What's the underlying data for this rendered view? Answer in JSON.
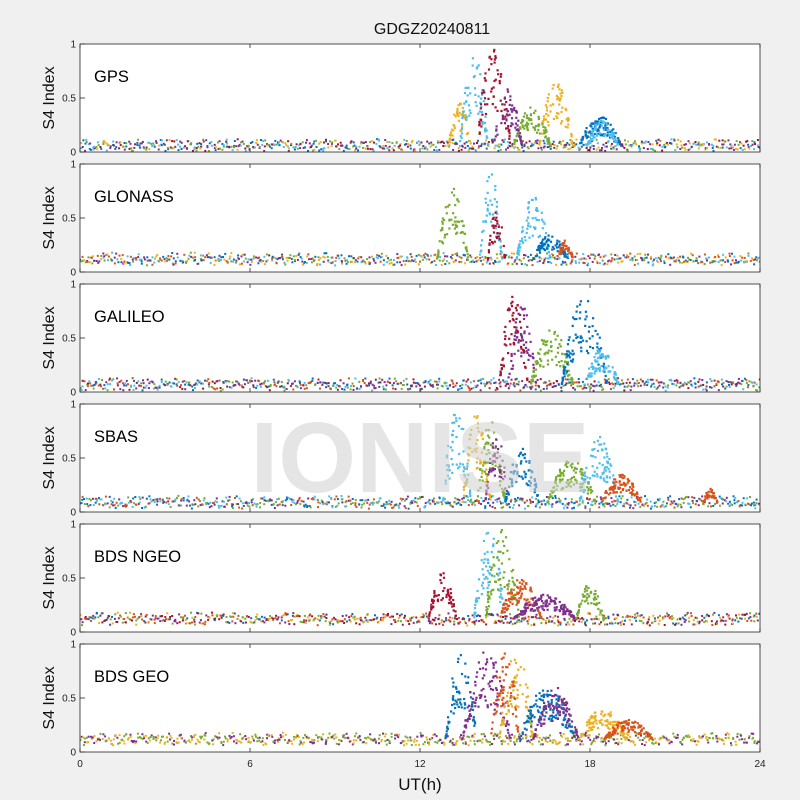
{
  "chart_data": {
    "type": "scatter",
    "title": "GDGZ20240811",
    "xlabel": "UT(h)",
    "ylabel": "S4 Index",
    "xlim": [
      0,
      24
    ],
    "ylim": [
      0,
      1
    ],
    "x_ticks": [
      "0",
      "6",
      "12",
      "18",
      "24"
    ],
    "y_ticks": [
      "0",
      "0.5",
      "1"
    ],
    "watermark": "IONISE",
    "colors": [
      "#0072BD",
      "#D95319",
      "#EDB120",
      "#7E2F8E",
      "#77AC30",
      "#4DBEEE",
      "#A2142F"
    ],
    "panels": [
      {
        "name": "GPS",
        "baseline_colors": [
          6,
          0,
          4,
          2,
          3,
          5
        ],
        "baseline_level": 0.06,
        "events": [
          {
            "start": 13.0,
            "end": 13.8,
            "peak": 0.45,
            "color": 2
          },
          {
            "start": 13.4,
            "end": 14.4,
            "peak": 0.9,
            "color": 5
          },
          {
            "start": 14.0,
            "end": 15.2,
            "peak": 0.95,
            "color": 6
          },
          {
            "start": 14.6,
            "end": 15.6,
            "peak": 0.6,
            "color": 3
          },
          {
            "start": 15.3,
            "end": 16.6,
            "peak": 0.42,
            "color": 4
          },
          {
            "start": 16.2,
            "end": 17.4,
            "peak": 0.65,
            "color": 2
          },
          {
            "start": 17.6,
            "end": 19.1,
            "peak": 0.33,
            "color": 0
          },
          {
            "start": 17.9,
            "end": 19.0,
            "peak": 0.3,
            "color": 5
          }
        ]
      },
      {
        "name": "GLONASS",
        "baseline_colors": [
          1,
          2,
          3,
          4,
          0,
          5
        ],
        "baseline_level": 0.12,
        "events": [
          {
            "start": 12.6,
            "end": 13.7,
            "peak": 0.78,
            "color": 4
          },
          {
            "start": 14.1,
            "end": 14.9,
            "peak": 0.92,
            "color": 5
          },
          {
            "start": 14.4,
            "end": 15.0,
            "peak": 0.6,
            "color": 6
          },
          {
            "start": 15.4,
            "end": 16.6,
            "peak": 0.7,
            "color": 5
          },
          {
            "start": 16.0,
            "end": 17.2,
            "peak": 0.35,
            "color": 0
          },
          {
            "start": 16.8,
            "end": 17.4,
            "peak": 0.3,
            "color": 1
          }
        ]
      },
      {
        "name": "GALILEO",
        "baseline_colors": [
          1,
          3,
          0,
          4,
          6,
          5
        ],
        "baseline_level": 0.07,
        "events": [
          {
            "start": 14.8,
            "end": 15.8,
            "peak": 0.9,
            "color": 6
          },
          {
            "start": 15.1,
            "end": 16.1,
            "peak": 0.8,
            "color": 3
          },
          {
            "start": 15.9,
            "end": 17.4,
            "peak": 0.6,
            "color": 4
          },
          {
            "start": 17.0,
            "end": 18.6,
            "peak": 0.9,
            "color": 0
          },
          {
            "start": 17.8,
            "end": 19.0,
            "peak": 0.4,
            "color": 5
          }
        ]
      },
      {
        "name": "SBAS",
        "baseline_colors": [
          5,
          0,
          4,
          3,
          1
        ],
        "baseline_level": 0.09,
        "events": [
          {
            "start": 12.8,
            "end": 13.8,
            "peak": 0.95,
            "color": 5
          },
          {
            "start": 13.5,
            "end": 14.5,
            "peak": 0.92,
            "color": 2
          },
          {
            "start": 14.0,
            "end": 15.0,
            "peak": 0.85,
            "color": 4
          },
          {
            "start": 14.3,
            "end": 15.1,
            "peak": 0.75,
            "color": 3
          },
          {
            "start": 15.0,
            "end": 16.2,
            "peak": 0.6,
            "color": 0
          },
          {
            "start": 16.5,
            "end": 18.2,
            "peak": 0.5,
            "color": 4
          },
          {
            "start": 17.6,
            "end": 19.0,
            "peak": 0.7,
            "color": 5
          },
          {
            "start": 18.4,
            "end": 19.8,
            "peak": 0.35,
            "color": 1
          },
          {
            "start": 22.0,
            "end": 22.5,
            "peak": 0.22,
            "color": 1
          }
        ]
      },
      {
        "name": "BDS NGEO",
        "baseline_colors": [
          1,
          0,
          6,
          4,
          2,
          3
        ],
        "baseline_level": 0.12,
        "events": [
          {
            "start": 12.3,
            "end": 13.3,
            "peak": 0.55,
            "color": 6
          },
          {
            "start": 13.9,
            "end": 15.0,
            "peak": 0.95,
            "color": 5
          },
          {
            "start": 14.3,
            "end": 15.5,
            "peak": 0.95,
            "color": 4
          },
          {
            "start": 14.8,
            "end": 16.3,
            "peak": 0.5,
            "color": 1
          },
          {
            "start": 15.3,
            "end": 17.5,
            "peak": 0.35,
            "color": 3
          },
          {
            "start": 17.5,
            "end": 18.5,
            "peak": 0.45,
            "color": 4
          }
        ]
      },
      {
        "name": "BDS GEO",
        "baseline_colors": [
          3,
          4,
          2
        ],
        "baseline_level": 0.12,
        "events": [
          {
            "start": 12.9,
            "end": 14.0,
            "peak": 0.95,
            "color": 0
          },
          {
            "start": 13.5,
            "end": 15.2,
            "peak": 0.95,
            "color": 3
          },
          {
            "start": 14.5,
            "end": 15.5,
            "peak": 1.0,
            "color": 1
          },
          {
            "start": 14.8,
            "end": 16.0,
            "peak": 0.95,
            "color": 2
          },
          {
            "start": 15.5,
            "end": 17.5,
            "peak": 0.6,
            "color": 0
          },
          {
            "start": 16.0,
            "end": 17.6,
            "peak": 0.6,
            "color": 3
          },
          {
            "start": 17.6,
            "end": 19.3,
            "peak": 0.4,
            "color": 2
          },
          {
            "start": 18.5,
            "end": 20.2,
            "peak": 0.3,
            "color": 1
          }
        ]
      }
    ]
  }
}
